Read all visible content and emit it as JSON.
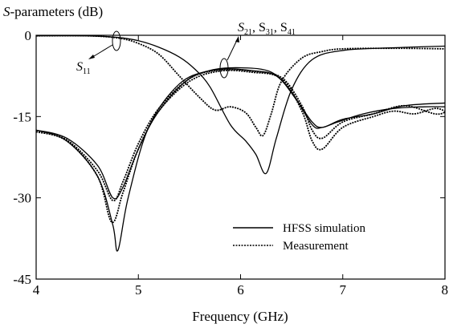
{
  "chart_data": {
    "type": "line",
    "title": "",
    "ylabel_prefix": "S",
    "ylabel_rest": "-parameters (dB)",
    "xlabel": "Frequency (GHz)",
    "xlim": [
      4,
      8
    ],
    "ylim": [
      -45,
      0
    ],
    "xticks": [
      4,
      5,
      6,
      7,
      8
    ],
    "yticks": [
      0,
      -15,
      -30,
      -45
    ],
    "grid": false,
    "legend": {
      "placement": "lower-right",
      "entries": [
        {
          "label": "HFSS simulation",
          "style": "solid"
        },
        {
          "label": "Measurement",
          "style": "dotted"
        }
      ]
    },
    "annotations": [
      {
        "text": "S",
        "sub": "11",
        "target": "S11 curves"
      },
      {
        "text": "S21, S31, S41",
        "parts": [
          {
            "t": "S",
            "s": "21"
          },
          {
            "t": ", S",
            "s": "31"
          },
          {
            "t": ", S",
            "s": "41"
          }
        ],
        "target": "transmission curves"
      }
    ],
    "series": [
      {
        "style": "solid",
        "x": [
          4.0,
          4.5,
          4.8,
          5.0,
          5.2,
          5.4,
          5.55,
          5.7,
          5.9,
          6.05,
          6.15,
          6.25,
          6.35,
          6.5,
          6.7,
          7.0,
          7.5,
          8.0
        ],
        "y": [
          -0.1,
          -0.1,
          -0.4,
          -1.0,
          -2.2,
          -4.0,
          -6.2,
          -9.5,
          -16.5,
          -19.5,
          -22.0,
          -25.5,
          -19.0,
          -10.0,
          -4.5,
          -2.8,
          -2.3,
          -2.0
        ]
      },
      {
        "style": "dotted",
        "x": [
          4.0,
          4.5,
          4.8,
          5.0,
          5.2,
          5.4,
          5.6,
          5.75,
          5.9,
          6.05,
          6.15,
          6.22,
          6.3,
          6.4,
          6.6,
          6.8,
          7.0,
          7.5,
          8.0
        ],
        "y": [
          -0.1,
          -0.1,
          -0.5,
          -1.5,
          -3.5,
          -7.5,
          -11.5,
          -13.8,
          -13.2,
          -14.3,
          -17.0,
          -18.5,
          -14.5,
          -8.5,
          -4.2,
          -3.0,
          -2.5,
          -2.4,
          -2.5
        ]
      },
      {
        "style": "solid",
        "x": [
          4.0,
          4.3,
          4.6,
          4.75,
          4.8,
          4.9,
          5.1,
          5.4,
          5.7,
          6.0,
          6.3,
          6.5,
          6.7,
          6.8,
          6.95,
          7.2,
          7.5,
          7.8,
          8.0
        ],
        "y": [
          -17.5,
          -19.5,
          -26.0,
          -35.0,
          -39.7,
          -30.0,
          -17.0,
          -9.0,
          -6.5,
          -6.0,
          -6.8,
          -10.5,
          -16.5,
          -17.0,
          -16.0,
          -14.5,
          -13.5,
          -13.2,
          -13.2
        ]
      },
      {
        "style": "solid",
        "x": [
          4.0,
          4.3,
          4.6,
          4.75,
          4.85,
          5.0,
          5.2,
          5.5,
          5.8,
          6.1,
          6.35,
          6.55,
          6.7,
          6.8,
          7.0,
          7.3,
          7.6,
          8.0
        ],
        "y": [
          -17.5,
          -19.0,
          -24.0,
          -30.0,
          -28.0,
          -21.0,
          -14.0,
          -8.0,
          -6.3,
          -6.5,
          -7.5,
          -12.0,
          -16.0,
          -17.0,
          -15.5,
          -14.5,
          -13.0,
          -12.5
        ]
      },
      {
        "style": "dotted",
        "x": [
          4.0,
          4.3,
          4.6,
          4.74,
          4.85,
          5.0,
          5.2,
          5.5,
          5.8,
          6.1,
          6.4,
          6.6,
          6.7,
          6.8,
          7.0,
          7.3,
          7.5,
          7.7,
          7.9,
          8.0
        ],
        "y": [
          -17.8,
          -19.5,
          -26.0,
          -34.5,
          -29.0,
          -21.0,
          -14.0,
          -8.5,
          -6.6,
          -6.8,
          -8.0,
          -14.0,
          -19.5,
          -21.0,
          -17.0,
          -15.0,
          -14.0,
          -14.5,
          -13.5,
          -14.0
        ]
      },
      {
        "style": "dotted",
        "x": [
          4.0,
          4.3,
          4.6,
          4.75,
          4.85,
          5.0,
          5.2,
          5.5,
          5.8,
          6.1,
          6.4,
          6.6,
          6.7,
          6.8,
          7.0,
          7.3,
          7.6,
          7.9,
          8.0
        ],
        "y": [
          -17.8,
          -19.3,
          -25.0,
          -30.5,
          -27.0,
          -20.0,
          -13.5,
          -8.0,
          -6.4,
          -6.6,
          -7.8,
          -13.0,
          -17.5,
          -19.0,
          -16.0,
          -14.5,
          -13.0,
          -14.5,
          -14.2
        ]
      }
    ]
  }
}
